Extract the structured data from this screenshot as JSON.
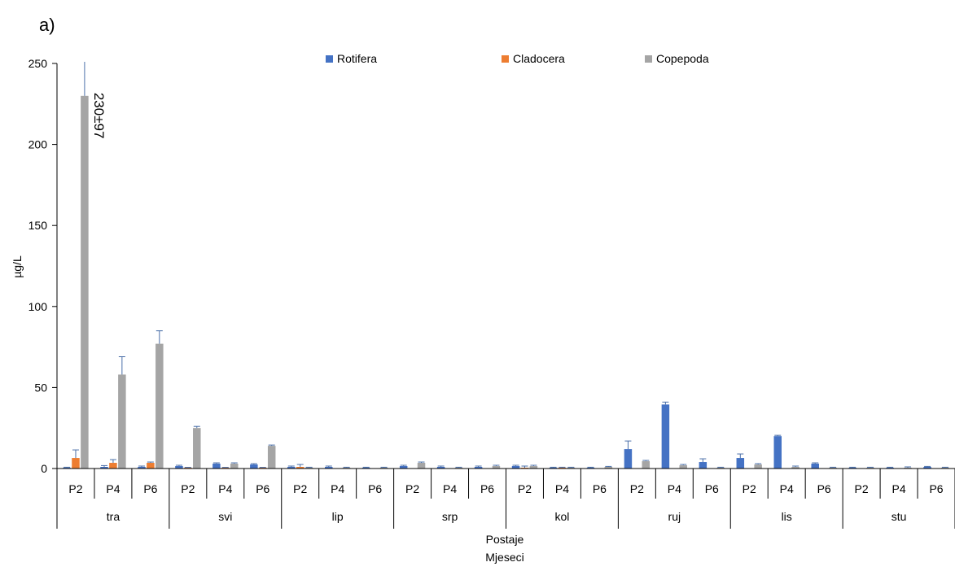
{
  "chart_data": {
    "type": "bar",
    "panel_label": "a)",
    "ylabel": "µg/L",
    "xlabel_lines": [
      "Postaje",
      "Mjeseci"
    ],
    "ylim": [
      0,
      250
    ],
    "yticks": [
      0,
      50,
      100,
      150,
      200,
      250
    ],
    "legend_position": "top",
    "months": [
      "tra",
      "svi",
      "lip",
      "srp",
      "kol",
      "ruj",
      "lis",
      "stu"
    ],
    "stations": [
      "P2",
      "P4",
      "P6"
    ],
    "series": [
      {
        "name": "Rotifera",
        "color": "#4472c4",
        "values": [
          0.5,
          1.0,
          1.0,
          1.5,
          3.0,
          2.5,
          1.0,
          1.0,
          0.5,
          1.5,
          1.0,
          1.0,
          1.5,
          0.5,
          0.5,
          12.0,
          39.5,
          4.0,
          6.5,
          20.0,
          3.0,
          0.5,
          0.5,
          1.0
        ],
        "errors": [
          0.3,
          0.8,
          0.5,
          0.5,
          0.5,
          0.5,
          0.5,
          0.5,
          0.3,
          0.5,
          0.5,
          0.5,
          0.5,
          0.3,
          0.3,
          5.0,
          1.5,
          2.0,
          2.5,
          0.5,
          0.5,
          0.3,
          0.3,
          0.3
        ]
      },
      {
        "name": "Cladocera",
        "color": "#ed7d31",
        "values": [
          6.5,
          3.5,
          3.5,
          0.5,
          0.5,
          0.5,
          1.0,
          0,
          0,
          0,
          0,
          0,
          0.5,
          0.5,
          0,
          0,
          0,
          0,
          0,
          0,
          0,
          0,
          0,
          0
        ],
        "errors": [
          5.0,
          2.0,
          0.5,
          0.2,
          0.2,
          0.2,
          1.5,
          0,
          0,
          0,
          0,
          0,
          1.0,
          0.3,
          0,
          0,
          0,
          0,
          0,
          0,
          0,
          0,
          0,
          0
        ]
      },
      {
        "name": "Copepoda",
        "color": "#a5a5a5",
        "values": [
          230,
          58,
          77,
          25,
          3,
          14,
          0.5,
          0.5,
          0.5,
          3.5,
          0.5,
          1.5,
          1.5,
          0.5,
          1.0,
          4.5,
          2.0,
          0.5,
          2.5,
          1.0,
          0.5,
          0.5,
          0.5,
          0.5
        ],
        "errors": [
          97,
          11,
          8,
          1,
          0.5,
          0.5,
          0.3,
          0.3,
          0.3,
          0.5,
          0.3,
          0.5,
          0.5,
          0.3,
          0.3,
          0.5,
          0.5,
          0.3,
          0.5,
          0.5,
          0.3,
          0.3,
          0.5,
          0.3
        ]
      }
    ],
    "annotation": "230±97"
  }
}
